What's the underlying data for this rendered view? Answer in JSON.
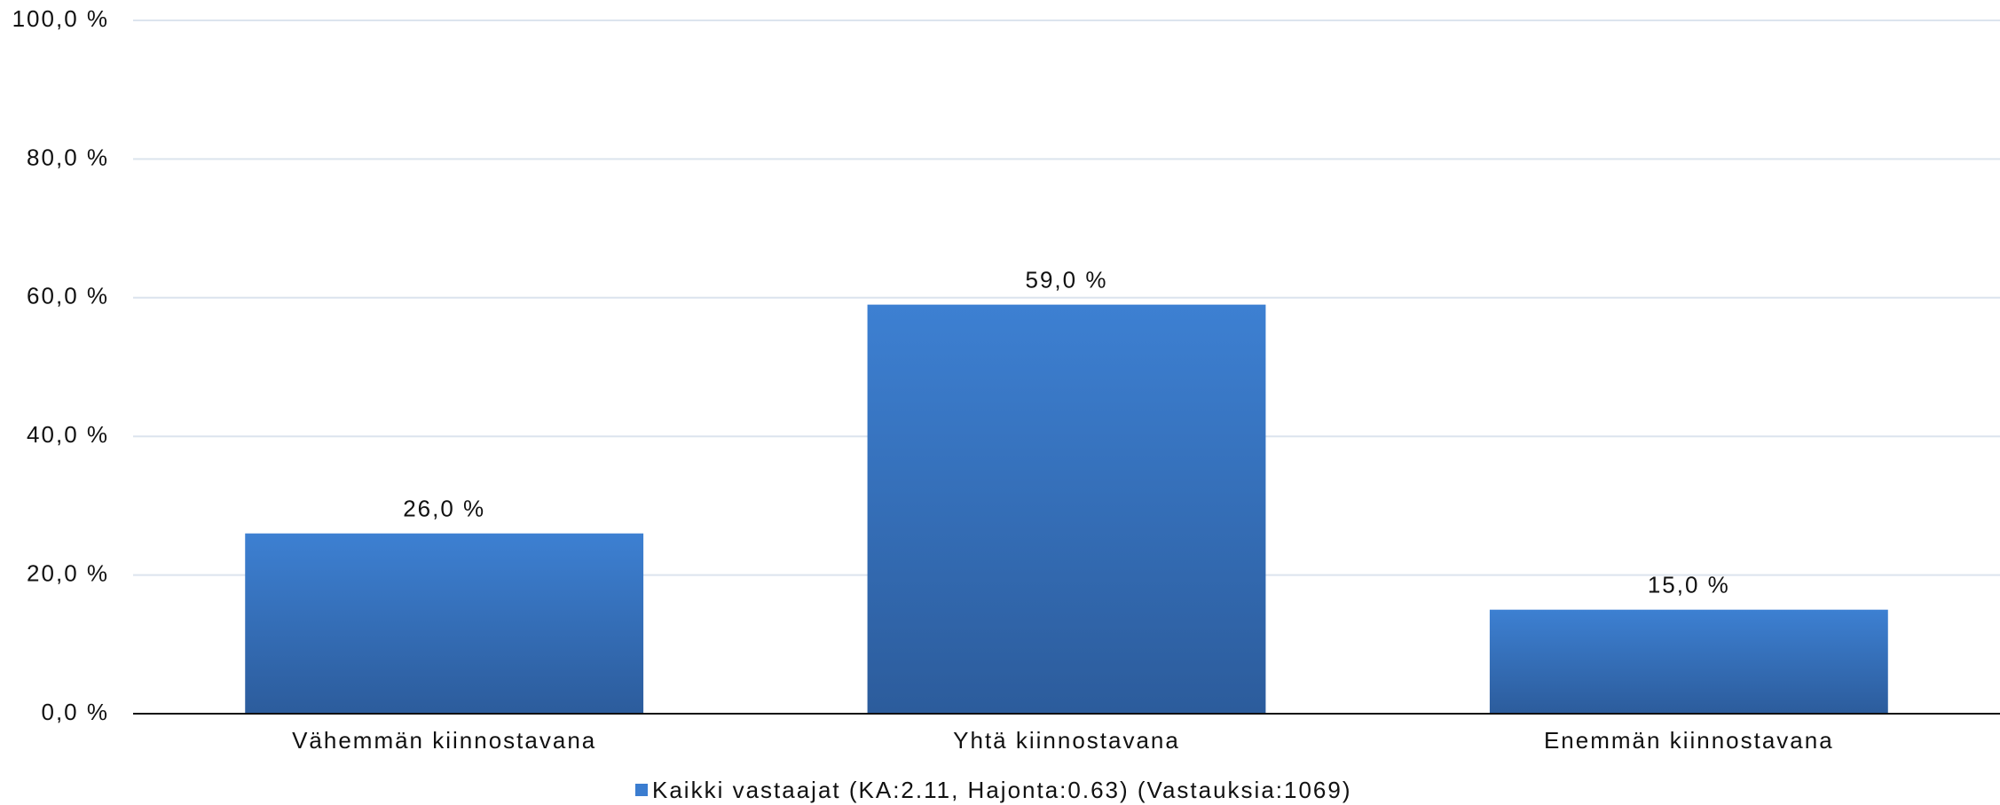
{
  "chart_data": {
    "type": "bar",
    "categories": [
      "Vähemmän kiinnostavana",
      "Yhtä kiinnostavana",
      "Enemmän kiinnostavana"
    ],
    "series": [
      {
        "name": "Kaikki vastaajat (KA:2.11, Hajonta:0.63) (Vastauksia:1069)",
        "color": "#3b7dd0",
        "values": [
          26,
          59,
          15
        ],
        "value_labels": [
          "26,0 %",
          "59,0 %",
          "15,0 %"
        ]
      }
    ],
    "ylim": [
      0,
      100
    ],
    "yticks": [
      {
        "value": 0,
        "label": "0,0 %"
      },
      {
        "value": 20,
        "label": "20,0 %"
      },
      {
        "value": 40,
        "label": "40,0 %"
      },
      {
        "value": 60,
        "label": "60,0 %"
      },
      {
        "value": 80,
        "label": "80,0 %"
      },
      {
        "value": 100,
        "label": "100,0 %"
      }
    ],
    "grid": true,
    "legend": "bottom"
  }
}
